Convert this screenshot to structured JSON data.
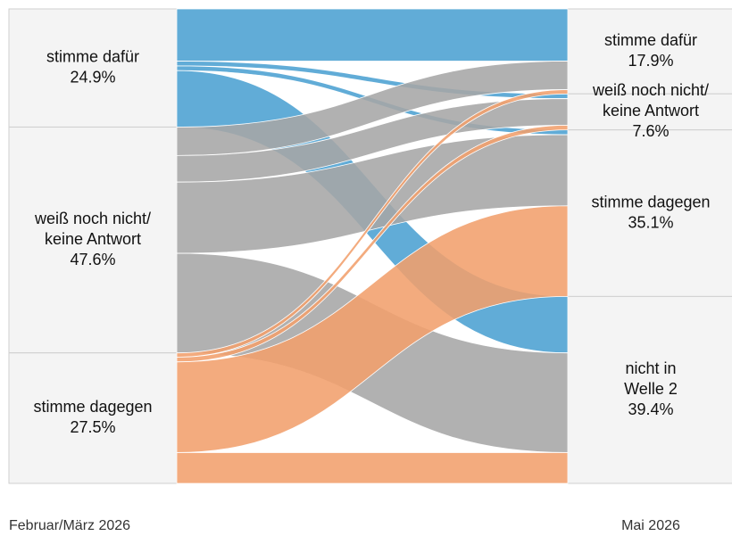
{
  "chart_data": {
    "type": "sankey",
    "stages": [
      "Februar/März 2026",
      "Mai 2026"
    ],
    "left_nodes": [
      {
        "label": [
          "stimme dafür"
        ],
        "value": 24.9,
        "value_label": "24.9%",
        "color": "#4ba0d1"
      },
      {
        "label": [
          "weiß noch nicht/",
          "keine Antwort"
        ],
        "value": 47.6,
        "value_label": "47.6%",
        "color": "#a6a6a6"
      },
      {
        "label": [
          "stimme dagegen"
        ],
        "value": 27.5,
        "value_label": "27.5%",
        "color": "#f19f6c"
      }
    ],
    "right_nodes": [
      {
        "label": [
          "stimme dafür"
        ],
        "value": 17.9,
        "value_label": "17.9%"
      },
      {
        "label": [
          "weiß noch nicht/",
          "keine Antwort"
        ],
        "value": 7.6,
        "value_label": "7.6%"
      },
      {
        "label": [
          "stimme dagegen"
        ],
        "value": 35.1,
        "value_label": "35.1%"
      },
      {
        "label": [
          "nicht in",
          "Welle 2"
        ],
        "value": 39.4,
        "value_label": "39.4%"
      }
    ],
    "flows": [
      {
        "source": 0,
        "target": 0,
        "value": 11.0
      },
      {
        "source": 0,
        "target": 1,
        "value": 1.0
      },
      {
        "source": 0,
        "target": 2,
        "value": 1.0
      },
      {
        "source": 0,
        "target": 3,
        "value": 11.9
      },
      {
        "source": 1,
        "target": 0,
        "value": 6.0
      },
      {
        "source": 1,
        "target": 1,
        "value": 5.6
      },
      {
        "source": 1,
        "target": 2,
        "value": 15.0
      },
      {
        "source": 1,
        "target": 3,
        "value": 21.0
      },
      {
        "source": 2,
        "target": 0,
        "value": 0.9
      },
      {
        "source": 2,
        "target": 1,
        "value": 1.0
      },
      {
        "source": 2,
        "target": 2,
        "value": 19.1
      },
      {
        "source": 2,
        "target": 3,
        "value": 6.5
      }
    ]
  }
}
